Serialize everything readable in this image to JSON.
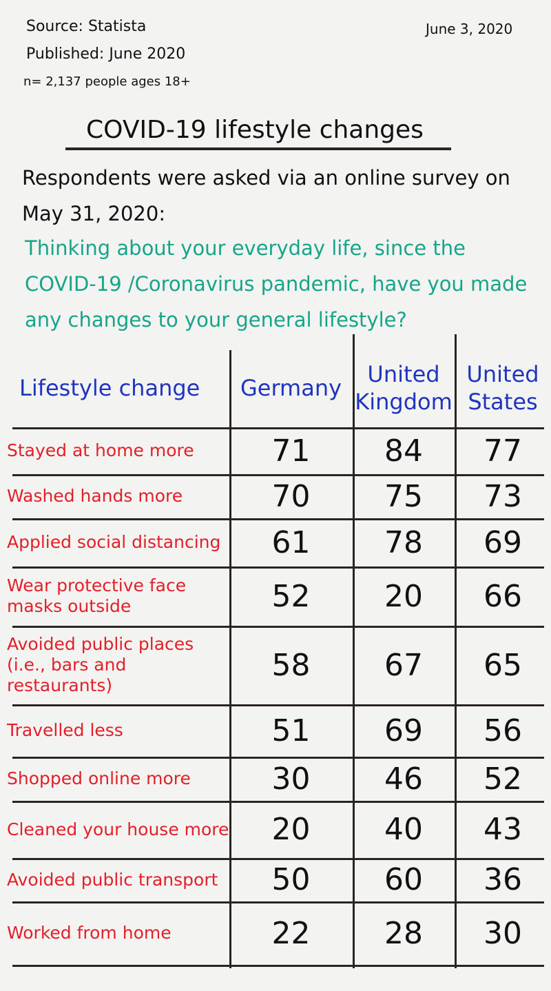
{
  "header": {
    "source": "Source: Statista",
    "published": "Published: June 2020",
    "sample": "n= 2,137 people ages 18+",
    "date": "June 3, 2020"
  },
  "title": "COVID-19 lifestyle changes",
  "intro": "Respondents were asked via an online survey on May 31, 2020:",
  "question": "Thinking about your everyday life, since the COVID-19 /Coronavirus pandemic, have you made any changes to your general lifestyle?",
  "table": {
    "headers": [
      "Lifestyle change",
      "Germany",
      "United Kingdom",
      "United States"
    ],
    "rows": [
      [
        "Stayed at home more",
        "71",
        "84",
        "77"
      ],
      [
        "Washed hands more",
        "70",
        "75",
        "73"
      ],
      [
        "Applied social distancing",
        "61",
        "78",
        "69"
      ],
      [
        "Wear protective face masks outside",
        "52",
        "20",
        "66"
      ],
      [
        "Avoided public places (i.e., bars and restaurants)",
        "58",
        "67",
        "65"
      ],
      [
        "Travelled less",
        "51",
        "69",
        "56"
      ],
      [
        "Shopped online more",
        "30",
        "46",
        "52"
      ],
      [
        "Cleaned your house more",
        "20",
        "40",
        "43"
      ],
      [
        "Avoided public transport",
        "50",
        "60",
        "36"
      ],
      [
        "Worked from home",
        "22",
        "28",
        "30"
      ]
    ]
  }
}
